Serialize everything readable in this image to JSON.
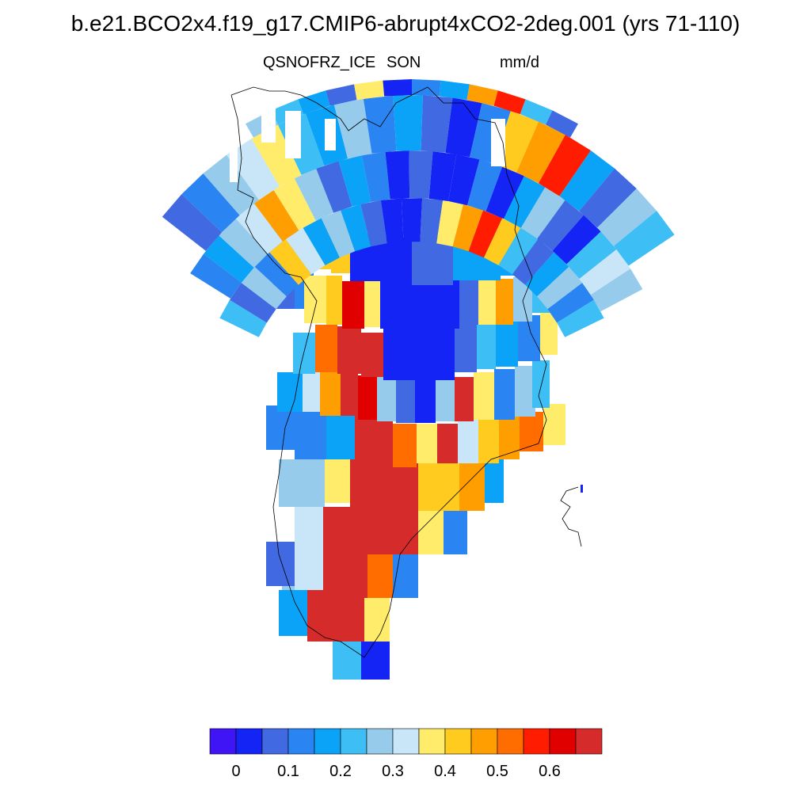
{
  "title": "b.e21.BCO2x4.f19_g17.CMIP6-abrupt4xCO2-2deg.001 (yrs 71-110)",
  "variable": "QSNOFRZ_ICE",
  "season": "SON",
  "units": "mm/d",
  "colorbar": {
    "colors": [
      "#4015f5",
      "#1424f5",
      "#4169e1",
      "#2a85f2",
      "#0aa3f7",
      "#3dbff5",
      "#96cbeb",
      "#c8e6f8",
      "#ffec6b",
      "#ffcb1f",
      "#ff9e00",
      "#ff6c00",
      "#ff1c00",
      "#e00000",
      "#d62b2b"
    ],
    "tick_labels": [
      "0",
      "0.1",
      "0.2",
      "0.3",
      "0.4",
      "0.5",
      "0.6"
    ]
  }
}
